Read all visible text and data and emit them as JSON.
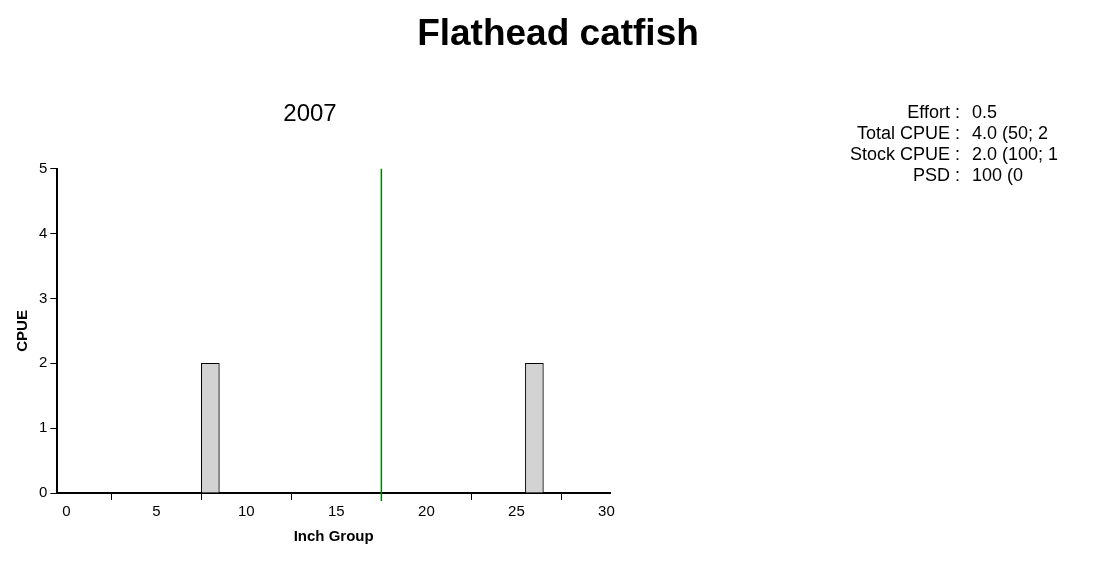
{
  "chart_data": {
    "type": "histogram",
    "title": "Flathead catfish",
    "subtitle": "2007",
    "xlabel": "Inch Group",
    "ylabel": "CPUE",
    "bins": [
      7.5,
      8.5,
      9.5,
      10.5,
      11.5,
      12.5,
      13.5,
      14.5,
      15.5,
      16.5,
      17.5,
      18.5,
      19.5,
      20.5,
      21.5,
      22.5,
      23.5,
      24.5,
      25.5,
      26.5
    ],
    "values": [
      2,
      0,
      0,
      0,
      0,
      0,
      0,
      0,
      0,
      0,
      0,
      0,
      0,
      0,
      0,
      0,
      0,
      0,
      2
    ],
    "color": "#d3d3d3",
    "xlim": [
      -0.5,
      30.2
    ],
    "xticks": [
      0,
      5,
      10,
      15,
      20,
      25,
      30
    ],
    "ylim": [
      0,
      5
    ],
    "yticks": [
      0,
      1,
      2,
      3,
      4,
      5
    ],
    "grid": false,
    "legend": false,
    "ref_lines": [
      {
        "axis": "x",
        "value": 17.5,
        "color": "#008000"
      }
    ],
    "annotations": [
      "Effort : 0.5",
      "Total CPUE : 4.0 (50; 2",
      "Stock CPUE : 2.0 (100; 1",
      "PSD : 100 (0"
    ]
  }
}
